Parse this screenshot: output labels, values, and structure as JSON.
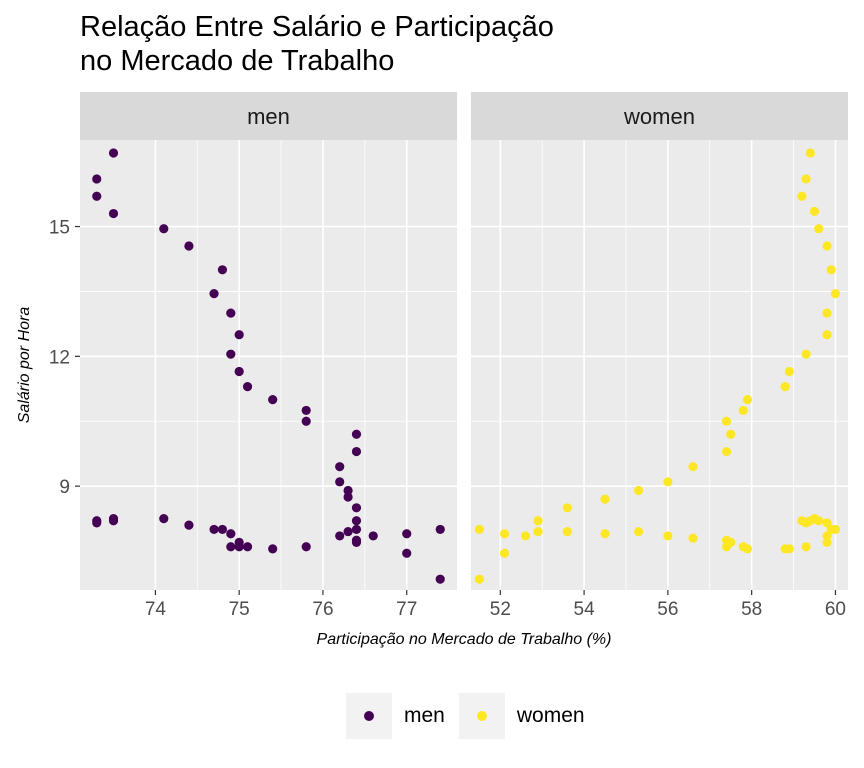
{
  "title_lines": [
    "Relação Entre Salário e Participação",
    "no Mercado de Trabalho"
  ],
  "colors": {
    "men": "#440154",
    "women": "#FDE725"
  },
  "legend": [
    {
      "label": "men",
      "color": "#440154"
    },
    {
      "label": "women",
      "color": "#FDE725"
    }
  ],
  "chart_data": {
    "type": "scatter",
    "title": "Relação Entre Salário e Participação no Mercado de Trabalho",
    "xlabel": "Participação no Mercado de Trabalho (%)",
    "ylabel": "Salário por Hora",
    "ylim": [
      6.6,
      17.0
    ],
    "yticks": [
      9,
      12,
      15
    ],
    "grid": true,
    "legend_position": "bottom",
    "facets": [
      {
        "name": "men",
        "xlim": [
          73.1,
          77.6
        ],
        "xticks": [
          74,
          75,
          76,
          77
        ],
        "points": [
          [
            73.5,
            16.7
          ],
          [
            73.3,
            16.1
          ],
          [
            73.3,
            15.7
          ],
          [
            73.5,
            15.3
          ],
          [
            74.1,
            14.95
          ],
          [
            74.4,
            14.55
          ],
          [
            74.8,
            14.0
          ],
          [
            74.7,
            13.45
          ],
          [
            74.9,
            13.0
          ],
          [
            75.0,
            12.5
          ],
          [
            74.9,
            12.05
          ],
          [
            75.0,
            11.65
          ],
          [
            75.1,
            11.3
          ],
          [
            75.4,
            11.0
          ],
          [
            75.8,
            10.75
          ],
          [
            75.8,
            10.5
          ],
          [
            76.4,
            10.2
          ],
          [
            76.4,
            9.8
          ],
          [
            76.2,
            9.45
          ],
          [
            76.2,
            9.1
          ],
          [
            76.3,
            8.9
          ],
          [
            76.3,
            8.75
          ],
          [
            76.4,
            8.5
          ],
          [
            76.4,
            8.2
          ],
          [
            76.4,
            8.0
          ],
          [
            76.3,
            7.95
          ],
          [
            76.2,
            7.85
          ],
          [
            76.6,
            7.85
          ],
          [
            76.4,
            7.75
          ],
          [
            77.0,
            7.9
          ],
          [
            77.4,
            8.0
          ],
          [
            73.3,
            8.15
          ],
          [
            73.3,
            8.2
          ],
          [
            73.5,
            8.2
          ],
          [
            73.5,
            8.25
          ],
          [
            74.1,
            8.25
          ],
          [
            74.4,
            8.1
          ],
          [
            74.7,
            8.0
          ],
          [
            74.8,
            8.0
          ],
          [
            74.9,
            7.9
          ],
          [
            75.0,
            7.7
          ],
          [
            74.9,
            7.6
          ],
          [
            75.0,
            7.6
          ],
          [
            75.1,
            7.6
          ],
          [
            75.4,
            7.55
          ],
          [
            75.8,
            7.6
          ],
          [
            76.4,
            7.7
          ],
          [
            77.0,
            7.45
          ],
          [
            77.4,
            6.85
          ]
        ]
      },
      {
        "name": "women",
        "xlim": [
          51.3,
          60.3
        ],
        "xticks": [
          52,
          54,
          56,
          58,
          60
        ],
        "points": [
          [
            59.4,
            16.7
          ],
          [
            59.3,
            16.1
          ],
          [
            59.2,
            15.7
          ],
          [
            59.5,
            15.35
          ],
          [
            59.6,
            14.95
          ],
          [
            59.8,
            14.55
          ],
          [
            59.9,
            14.0
          ],
          [
            60.0,
            13.45
          ],
          [
            59.8,
            13.0
          ],
          [
            59.8,
            12.5
          ],
          [
            59.3,
            12.05
          ],
          [
            58.9,
            11.65
          ],
          [
            58.8,
            11.3
          ],
          [
            57.9,
            11.0
          ],
          [
            57.8,
            10.75
          ],
          [
            57.4,
            10.5
          ],
          [
            57.5,
            10.2
          ],
          [
            57.4,
            9.8
          ],
          [
            56.6,
            9.45
          ],
          [
            56.0,
            9.1
          ],
          [
            55.3,
            8.9
          ],
          [
            54.5,
            8.7
          ],
          [
            53.6,
            8.5
          ],
          [
            52.9,
            8.2
          ],
          [
            52.9,
            7.95
          ],
          [
            52.6,
            7.85
          ],
          [
            52.1,
            7.9
          ],
          [
            51.5,
            8.0
          ],
          [
            53.6,
            7.95
          ],
          [
            54.5,
            7.9
          ],
          [
            55.3,
            7.95
          ],
          [
            56.0,
            7.85
          ],
          [
            56.6,
            7.8
          ],
          [
            57.4,
            7.75
          ],
          [
            57.5,
            7.7
          ],
          [
            57.4,
            7.6
          ],
          [
            57.8,
            7.6
          ],
          [
            57.9,
            7.55
          ],
          [
            58.8,
            7.55
          ],
          [
            58.9,
            7.55
          ],
          [
            59.2,
            8.2
          ],
          [
            59.3,
            8.15
          ],
          [
            59.4,
            8.2
          ],
          [
            59.5,
            8.25
          ],
          [
            59.6,
            8.2
          ],
          [
            59.8,
            8.15
          ],
          [
            59.9,
            8.0
          ],
          [
            60.0,
            8.0
          ],
          [
            59.8,
            7.85
          ],
          [
            59.8,
            7.7
          ],
          [
            59.3,
            7.6
          ],
          [
            52.1,
            7.45
          ],
          [
            51.5,
            6.85
          ]
        ]
      }
    ]
  }
}
